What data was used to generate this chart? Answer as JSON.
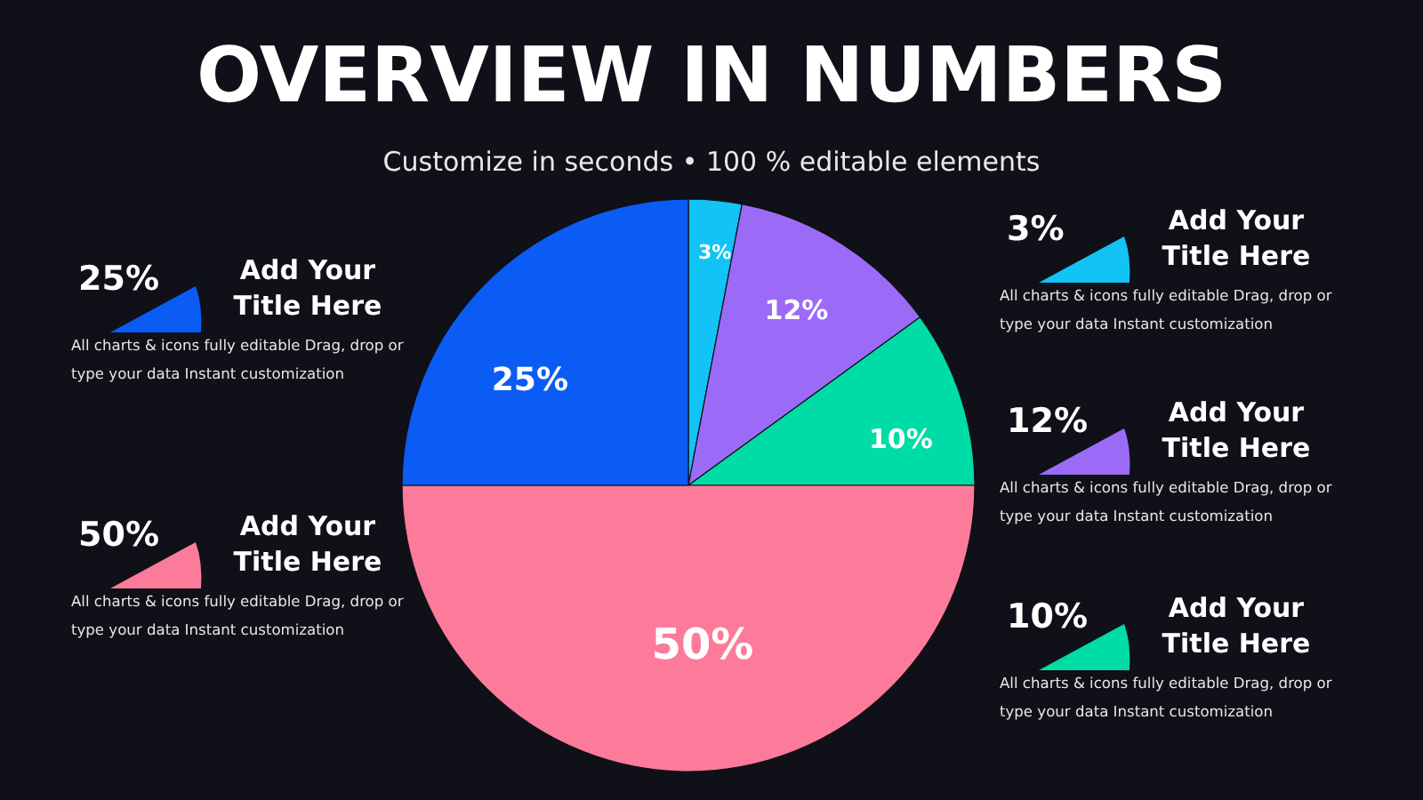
{
  "chart_data": {
    "type": "pie",
    "title": "OVERVIEW IN NUMBERS",
    "subtitle": "Customize in seconds • 100 % editable elements",
    "categories": [
      null,
      null,
      null,
      null,
      null
    ],
    "values": [
      3,
      12,
      10,
      50,
      25
    ],
    "value_labels": [
      "3%",
      "12%",
      "10%",
      "50%",
      "25%"
    ],
    "colors": [
      "#12c3f5",
      "#9b6bf7",
      "#00dca5",
      "#fd7b9a",
      "#0a5cf5"
    ],
    "annotations": [
      "25%",
      "Add Your Title Here",
      "All charts & icons fully editable Drag, drop or type your data Instant customization",
      "50%",
      "Add Your Title Here",
      "All charts & icons fully editable Drag, drop or type your data Instant customization",
      "3%",
      "Add Your Title Here",
      "All charts & icons fully editable Drag, drop or type your data Instant customization",
      "12%",
      "Add Your Title Here",
      "All charts & icons fully editable Drag, drop or type your data Instant customization",
      "10%",
      "Add Your Title Here",
      "All charts & icons fully editable Drag, drop or type your data Instant customization"
    ]
  }
}
